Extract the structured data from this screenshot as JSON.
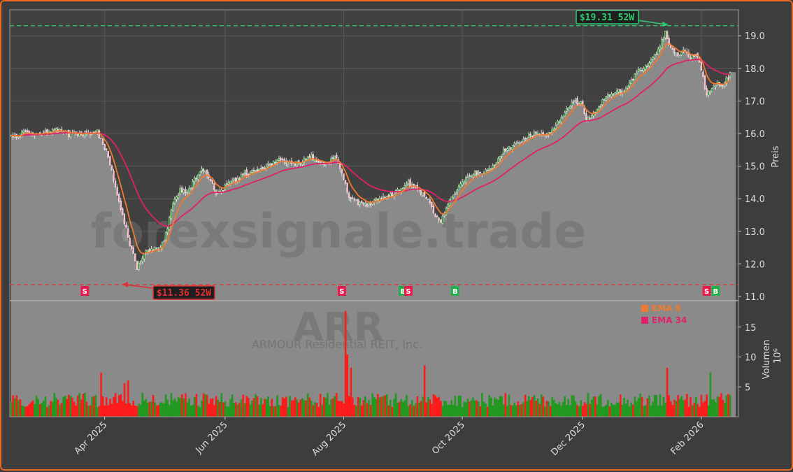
{
  "chart_data": {
    "type": "candlestick",
    "title": "ARR",
    "subtitle": "ARMOUR Residential REIT, Inc.",
    "watermark": "forexsignale.trade",
    "price_axis_label": "Preis",
    "volume_axis_label": "Volumen",
    "volume_unit_label": "10⁶",
    "x_ticks": [
      "Apr 2025",
      "Jun 2025",
      "Aug 2025",
      "Oct 2025",
      "Dec 2025",
      "Feb 2026"
    ],
    "price_ylim": [
      10.9,
      19.8
    ],
    "price_ticks": [
      "11.0",
      "12.0",
      "13.0",
      "14.0",
      "15.0",
      "16.0",
      "17.0",
      "18.0",
      "19.0"
    ],
    "volume_ylim": [
      0,
      19
    ],
    "volume_ticks": [
      "5",
      "10",
      "15"
    ],
    "high_52w": {
      "label": "$19.31 52W",
      "value": 19.31,
      "color": "#2ecc71"
    },
    "low_52w": {
      "label": "$11.36 52W",
      "value": 11.36,
      "color": "#e03030"
    },
    "legend": [
      {
        "name": "EMA 8",
        "color": "#f07a30"
      },
      {
        "name": "EMA 34",
        "color": "#e0206a"
      }
    ],
    "close_anchors": [
      [
        0,
        15.9
      ],
      [
        8,
        16.05
      ],
      [
        18,
        16.0
      ],
      [
        26,
        16.1
      ],
      [
        33,
        15.95
      ],
      [
        40,
        16.0
      ],
      [
        48,
        16.05
      ],
      [
        54,
        15.3
      ],
      [
        58,
        14.4
      ],
      [
        62,
        13.5
      ],
      [
        66,
        12.6
      ],
      [
        70,
        11.9
      ],
      [
        74,
        12.3
      ],
      [
        78,
        12.5
      ],
      [
        82,
        12.4
      ],
      [
        86,
        12.9
      ],
      [
        90,
        13.9
      ],
      [
        94,
        14.25
      ],
      [
        98,
        14.2
      ],
      [
        102,
        14.6
      ],
      [
        106,
        14.9
      ],
      [
        110,
        14.7
      ],
      [
        114,
        14.2
      ],
      [
        118,
        14.3
      ],
      [
        122,
        14.5
      ],
      [
        126,
        14.6
      ],
      [
        130,
        14.8
      ],
      [
        134,
        14.8
      ],
      [
        138,
        14.9
      ],
      [
        142,
        15.0
      ],
      [
        146,
        15.1
      ],
      [
        150,
        15.2
      ],
      [
        154,
        15.1
      ],
      [
        158,
        15.1
      ],
      [
        162,
        15.15
      ],
      [
        166,
        15.3
      ],
      [
        170,
        15.2
      ],
      [
        174,
        15.1
      ],
      [
        178,
        15.2
      ],
      [
        181,
        15.3
      ],
      [
        184,
        14.8
      ],
      [
        188,
        14.0
      ],
      [
        192,
        13.9
      ],
      [
        196,
        13.8
      ],
      [
        200,
        13.8
      ],
      [
        204,
        14.0
      ],
      [
        208,
        14.05
      ],
      [
        212,
        14.1
      ],
      [
        216,
        14.3
      ],
      [
        220,
        14.5
      ],
      [
        224,
        14.4
      ],
      [
        228,
        14.2
      ],
      [
        232,
        14.0
      ],
      [
        236,
        13.5
      ],
      [
        239,
        13.3
      ],
      [
        242,
        13.7
      ],
      [
        246,
        14.1
      ],
      [
        250,
        14.5
      ],
      [
        254,
        14.7
      ],
      [
        258,
        14.8
      ],
      [
        262,
        14.8
      ],
      [
        266,
        14.9
      ],
      [
        270,
        15.1
      ],
      [
        274,
        15.5
      ],
      [
        278,
        15.6
      ],
      [
        282,
        15.7
      ],
      [
        286,
        15.9
      ],
      [
        290,
        16.0
      ],
      [
        294,
        16.0
      ],
      [
        298,
        15.95
      ],
      [
        302,
        16.1
      ],
      [
        306,
        16.5
      ],
      [
        310,
        16.85
      ],
      [
        314,
        17.0
      ],
      [
        318,
        16.9
      ],
      [
        320,
        16.4
      ],
      [
        324,
        16.6
      ],
      [
        328,
        16.9
      ],
      [
        332,
        17.2
      ],
      [
        336,
        17.3
      ],
      [
        340,
        17.3
      ],
      [
        344,
        17.5
      ],
      [
        348,
        17.9
      ],
      [
        352,
        18.0
      ],
      [
        356,
        18.2
      ],
      [
        360,
        18.6
      ],
      [
        364,
        19.1
      ],
      [
        366,
        18.7
      ],
      [
        370,
        18.4
      ],
      [
        374,
        18.5
      ],
      [
        378,
        18.35
      ],
      [
        382,
        18.4
      ],
      [
        384,
        17.9
      ],
      [
        387,
        17.2
      ],
      [
        390,
        17.4
      ],
      [
        393,
        17.6
      ],
      [
        396,
        17.4
      ],
      [
        400,
        17.9
      ]
    ],
    "volume_highlights": [
      [
        50,
        7.4
      ],
      [
        63,
        5.6
      ],
      [
        65,
        6.1
      ],
      [
        186,
        17.7
      ],
      [
        187,
        10.4
      ],
      [
        189,
        8.2
      ],
      [
        230,
        8.6
      ],
      [
        365,
        8.2
      ],
      [
        389,
        7.4
      ],
      [
        400,
        3.7
      ]
    ],
    "signals": [
      {
        "label": "S",
        "type": "sell",
        "bar": 41
      },
      {
        "label": "B",
        "type": "buy",
        "bar": 84
      },
      {
        "label": "S",
        "type": "sell",
        "bar": 184
      },
      {
        "label": "B",
        "type": "buy",
        "bar": 218
      },
      {
        "label": "S",
        "type": "sell",
        "bar": 221
      },
      {
        "label": "B",
        "type": "buy",
        "bar": 247
      },
      {
        "label": "S",
        "type": "sell",
        "bar": 387
      },
      {
        "label": "B",
        "type": "buy",
        "bar": 392
      }
    ],
    "colors": {
      "up": "#1f9a1f",
      "down": "#ff1a1a",
      "ema8": "#f07a30",
      "ema34": "#e0206a",
      "area": "#8a8a8a",
      "plot_bg": "#414141",
      "buy": "#1fb04a",
      "sell": "#e51e4e"
    }
  }
}
